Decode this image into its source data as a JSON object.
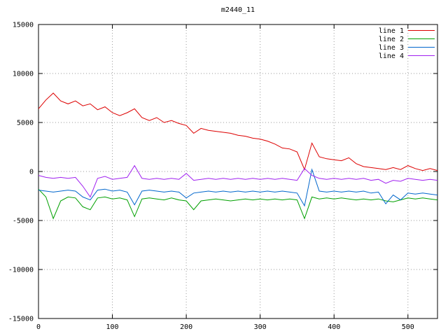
{
  "window": {
    "background": "#ffffff",
    "border_color": "#000000",
    "grid_color": "#9a9a9a"
  },
  "chart_data": {
    "type": "line",
    "title": "m2440_11",
    "xlabel": "",
    "ylabel": "",
    "xlim": [
      0,
      540
    ],
    "ylim": [
      -15000,
      15000
    ],
    "x_ticks": [
      0,
      100,
      200,
      300,
      400,
      500
    ],
    "y_ticks": [
      -15000,
      -10000,
      -5000,
      0,
      5000,
      10000,
      15000
    ],
    "grid": true,
    "legend_position": "top-right",
    "x_start": 0,
    "x_step": 10,
    "series": [
      {
        "name": "line 1",
        "color": "#dd0000",
        "values": [
          6400,
          7300,
          8000,
          7200,
          6900,
          7200,
          6700,
          6900,
          6300,
          6600,
          6000,
          5700,
          6000,
          6400,
          5500,
          5200,
          5500,
          5000,
          5200,
          4900,
          4700,
          3900,
          4400,
          4200,
          4100,
          4000,
          3900,
          3700,
          3600,
          3400,
          3300,
          3100,
          2800,
          2400,
          2300,
          2000,
          200,
          2900,
          1500,
          1300,
          1200,
          1100,
          1400,
          800,
          500,
          400,
          300,
          200,
          400,
          200,
          600,
          300,
          100,
          300,
          100
        ]
      },
      {
        "name": "line 2",
        "color": "#00a000",
        "values": [
          -1800,
          -2600,
          -4800,
          -3000,
          -2600,
          -2700,
          -3600,
          -3900,
          -2700,
          -2600,
          -2800,
          -2700,
          -2900,
          -4600,
          -2800,
          -2700,
          -2800,
          -2900,
          -2700,
          -2900,
          -3000,
          -3900,
          -3000,
          -2900,
          -2800,
          -2900,
          -3000,
          -2900,
          -2800,
          -2900,
          -2800,
          -2900,
          -2800,
          -2900,
          -2800,
          -2900,
          -4800,
          -2600,
          -2800,
          -2700,
          -2800,
          -2700,
          -2800,
          -2900,
          -2800,
          -2900,
          -2800,
          -3000,
          -3100,
          -2900,
          -2700,
          -2800,
          -2700,
          -2800,
          -2900
        ]
      },
      {
        "name": "line 3",
        "color": "#0066cc",
        "values": [
          -1900,
          -2000,
          -2100,
          -2000,
          -1900,
          -2000,
          -2600,
          -2900,
          -1900,
          -1800,
          -2000,
          -1900,
          -2100,
          -3400,
          -2000,
          -1900,
          -2000,
          -2100,
          -2000,
          -2100,
          -2700,
          -2200,
          -2100,
          -2000,
          -2100,
          -2000,
          -2100,
          -2000,
          -2100,
          -2000,
          -2100,
          -2000,
          -2100,
          -2000,
          -2100,
          -2200,
          -3500,
          200,
          -2000,
          -2100,
          -2000,
          -2100,
          -2000,
          -2100,
          -2000,
          -2200,
          -2100,
          -3300,
          -2400,
          -2900,
          -2200,
          -2300,
          -2200,
          -2300,
          -2400
        ]
      },
      {
        "name": "line 4",
        "color": "#a020f0",
        "values": [
          -400,
          -600,
          -700,
          -600,
          -700,
          -600,
          -1500,
          -2600,
          -700,
          -500,
          -800,
          -700,
          -600,
          600,
          -700,
          -800,
          -700,
          -800,
          -700,
          -800,
          -200,
          -900,
          -800,
          -700,
          -800,
          -700,
          -800,
          -700,
          -800,
          -700,
          -800,
          -700,
          -800,
          -700,
          -800,
          -900,
          300,
          -400,
          -700,
          -800,
          -700,
          -800,
          -700,
          -800,
          -700,
          -900,
          -800,
          -1200,
          -900,
          -1000,
          -700,
          -800,
          -900,
          -800,
          -900
        ]
      }
    ]
  }
}
